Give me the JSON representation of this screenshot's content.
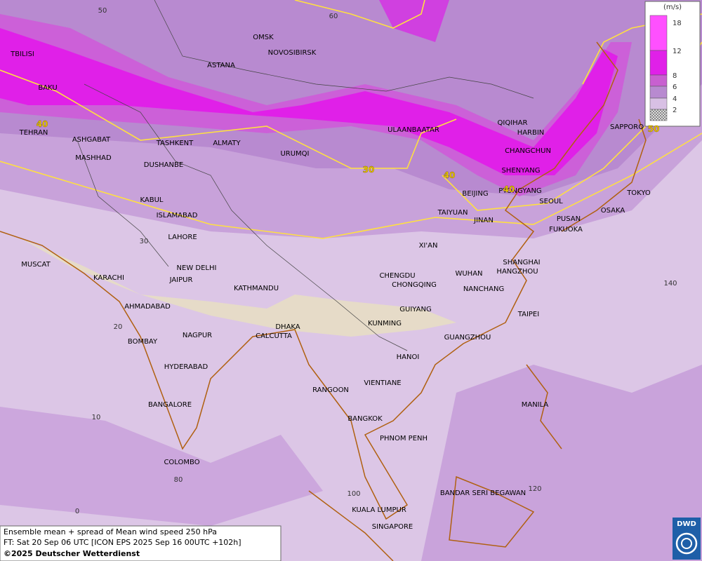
{
  "map": {
    "cities": [
      "TBILISI",
      "BAKU",
      "TEHRAN",
      "ASHGABAT",
      "MASHHAD",
      "OMSK",
      "NOVOSIBIRSK",
      "ASTANA",
      "TASHKENT",
      "ALMATY",
      "URUMQI",
      "DUSHANBE",
      "KABUL",
      "ISLAMABAD",
      "LAHORE",
      "NEW DELHI",
      "JAIPUR",
      "KARACHI",
      "MUSCAT",
      "AHMADABAD",
      "BOMBAY",
      "NAGPUR",
      "HYDERABAD",
      "BANGALORE",
      "COLOMBO",
      "KATHMANDU",
      "DHAKA",
      "CALCUTTA",
      "ULAANBAATAR",
      "QIQIHAR",
      "HARBIN",
      "CHANGCHUN",
      "SHENYANG",
      "BEIJING",
      "PYONGYANG",
      "SEOUL",
      "TAIYUAN",
      "JINAN",
      "PUSAN",
      "FUKUOKA",
      "OSAKA",
      "TOKYO",
      "SAPPORO",
      "XI'AN",
      "CHENGDU",
      "CHONGQING",
      "WUHAN",
      "SHANGHAI",
      "HANGZHOU",
      "NANCHANG",
      "TAIPEI",
      "GUIYANG",
      "KUNMING",
      "GUANGZHOU",
      "HANOI",
      "VIENTIANE",
      "RANGOON",
      "BANGKOK",
      "PHNOM PENH",
      "MANILA",
      "BANDAR SERI BEGAWAN",
      "KUALA LUMPUR",
      "SINGAPORE"
    ],
    "grid_labels": [
      "50",
      "60",
      "30",
      "20",
      "10",
      "0",
      "80",
      "100",
      "120",
      "140"
    ],
    "contour_labels": [
      "40",
      "30",
      "40",
      "40",
      "50"
    ]
  },
  "legend": {
    "unit": "(m/s)",
    "levels": [
      {
        "label": "18",
        "color": "#ff50ff"
      },
      {
        "label": "12",
        "color": "#e020e8"
      },
      {
        "label": "8",
        "color": "#c860d0"
      },
      {
        "label": "6",
        "color": "#b88ad0"
      },
      {
        "label": "4",
        "color": "#d8c0e4"
      },
      {
        "label": "2",
        "color": "url(#hatch)"
      }
    ]
  },
  "caption": {
    "line1": "Ensemble mean + spread of Mean wind speed 250 hPa",
    "line2": "FT: Sat 20 Sep 06 UTC [ICON EPS 2025 Sep 16 00UTC +102h]",
    "copyright": "©2025 Deutscher Wetterdienst"
  },
  "logo": "DWD"
}
